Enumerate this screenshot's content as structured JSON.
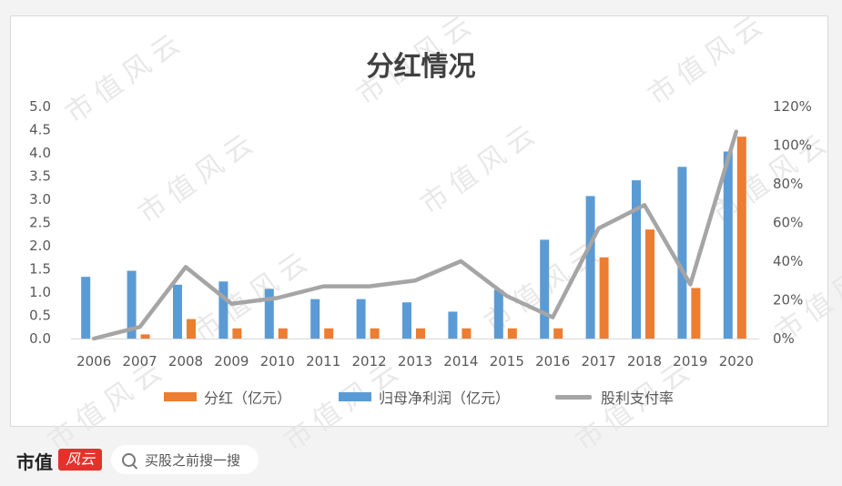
{
  "watermark_text": "市值风云",
  "footer": {
    "brand": "市值",
    "brand_tag": "风云",
    "search_placeholder": "买股之前搜一搜"
  },
  "chart_data": {
    "type": "bar",
    "title": "分红情况",
    "categories": [
      "2006",
      "2007",
      "2008",
      "2009",
      "2010",
      "2011",
      "2012",
      "2013",
      "2014",
      "2015",
      "2016",
      "2017",
      "2018",
      "2019",
      "2020"
    ],
    "y_left": {
      "min": 0,
      "max": 5.0,
      "step": 0.5,
      "ticks": [
        "0.0",
        "0.5",
        "1.0",
        "1.5",
        "2.0",
        "2.5",
        "3.0",
        "3.5",
        "4.0",
        "4.5",
        "5.0"
      ]
    },
    "y_right": {
      "min": 0,
      "max": 1.2,
      "step": 0.2,
      "ticks": [
        "0%",
        "20%",
        "40%",
        "60%",
        "80%",
        "100%",
        "120%"
      ]
    },
    "series": [
      {
        "name": "分红（亿元）",
        "type": "bar",
        "axis": "left",
        "color": "#ed7d31",
        "values": [
          0,
          0.09,
          0.42,
          0.22,
          0.22,
          0.22,
          0.22,
          0.22,
          0.22,
          0.22,
          0.22,
          1.75,
          2.35,
          1.09,
          4.35
        ]
      },
      {
        "name": "归母净利润（亿元）",
        "type": "bar",
        "axis": "left",
        "color": "#5b9bd5",
        "values": [
          1.33,
          1.46,
          1.16,
          1.23,
          1.07,
          0.85,
          0.85,
          0.78,
          0.58,
          1.05,
          2.13,
          3.07,
          3.41,
          3.7,
          4.03
        ]
      },
      {
        "name": "股利支付率",
        "type": "line",
        "axis": "right",
        "color": "#a5a5a5",
        "values": [
          0,
          0.06,
          0.37,
          0.18,
          0.21,
          0.27,
          0.27,
          0.3,
          0.4,
          0.22,
          0.11,
          0.57,
          0.69,
          0.28,
          1.07
        ]
      }
    ],
    "legend_position": "bottom",
    "grid": false
  }
}
